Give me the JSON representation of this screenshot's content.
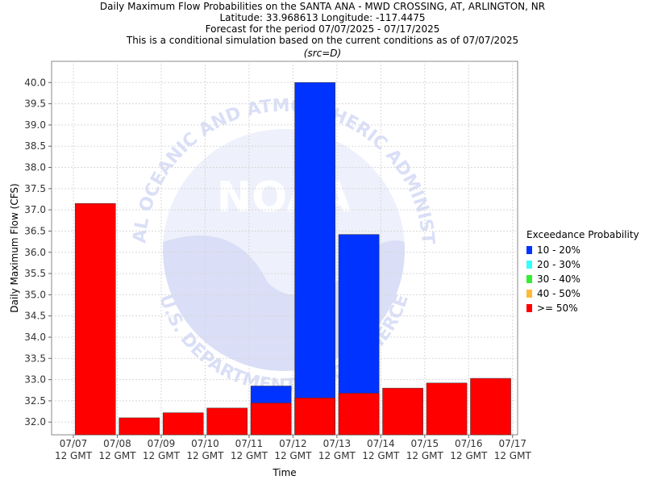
{
  "header": {
    "title": "Daily Maximum Flow Probabilities on the SANTA ANA - MWD CROSSING, AT, ARLINGTON, NR",
    "location": "Latitude: 33.968613 Longitude: -117.4475",
    "period": "Forecast for the period 07/07/2025 - 07/17/2025",
    "note": "This is a conditional simulation based on the current conditions as of 07/07/2025",
    "source": "(src=D)"
  },
  "watermark": {
    "logo_text": "NOAA",
    "ring_text_top": "NATIONAL OCEANIC AND ATMOSPHERIC ADMINISTRATION",
    "ring_text_bottom": "U.S. DEPARTMENT OF COMMERCE"
  },
  "legend": {
    "title": "Exceedance Probability",
    "items": [
      {
        "label": "10 - 20%",
        "color": "#0033ff"
      },
      {
        "label": "20 - 30%",
        "color": "#33ffff"
      },
      {
        "label": "30 - 40%",
        "color": "#33ee33"
      },
      {
        "label": "40 - 50%",
        "color": "#ffbb33"
      },
      {
        "label": ">= 50%",
        "color": "#ff0000"
      }
    ]
  },
  "chart_data": {
    "type": "bar",
    "xlabel": "Time",
    "ylabel": "Daily Maximum Flow (CFS)",
    "ylim": [
      31.7,
      40.5
    ],
    "yticks": [
      "32.0",
      "32.5",
      "33.0",
      "33.5",
      "34.0",
      "34.5",
      "35.0",
      "35.5",
      "36.0",
      "36.5",
      "37.0",
      "37.5",
      "38.0",
      "38.5",
      "39.0",
      "39.5",
      "40.0"
    ],
    "xticks": [
      [
        "07/07",
        "12 GMT"
      ],
      [
        "07/08",
        "12 GMT"
      ],
      [
        "07/09",
        "12 GMT"
      ],
      [
        "07/10",
        "12 GMT"
      ],
      [
        "07/11",
        "12 GMT"
      ],
      [
        "07/12",
        "12 GMT"
      ],
      [
        "07/13",
        "12 GMT"
      ],
      [
        "07/14",
        "12 GMT"
      ],
      [
        "07/15",
        "12 GMT"
      ],
      [
        "07/16",
        "12 GMT"
      ],
      [
        "07/17",
        "12 GMT"
      ]
    ],
    "grid": true,
    "legend_position": "right",
    "series": [
      {
        "name": ">= 50%",
        "color": "#ff0000",
        "values": [
          37.15,
          32.1,
          32.22,
          32.33,
          32.45,
          32.57,
          32.68,
          32.8,
          32.92,
          33.03
        ]
      },
      {
        "name": "10 - 20%",
        "color": "#0033ff",
        "values": [
          null,
          null,
          null,
          null,
          32.85,
          40.0,
          36.42,
          null,
          null,
          null
        ]
      }
    ]
  }
}
